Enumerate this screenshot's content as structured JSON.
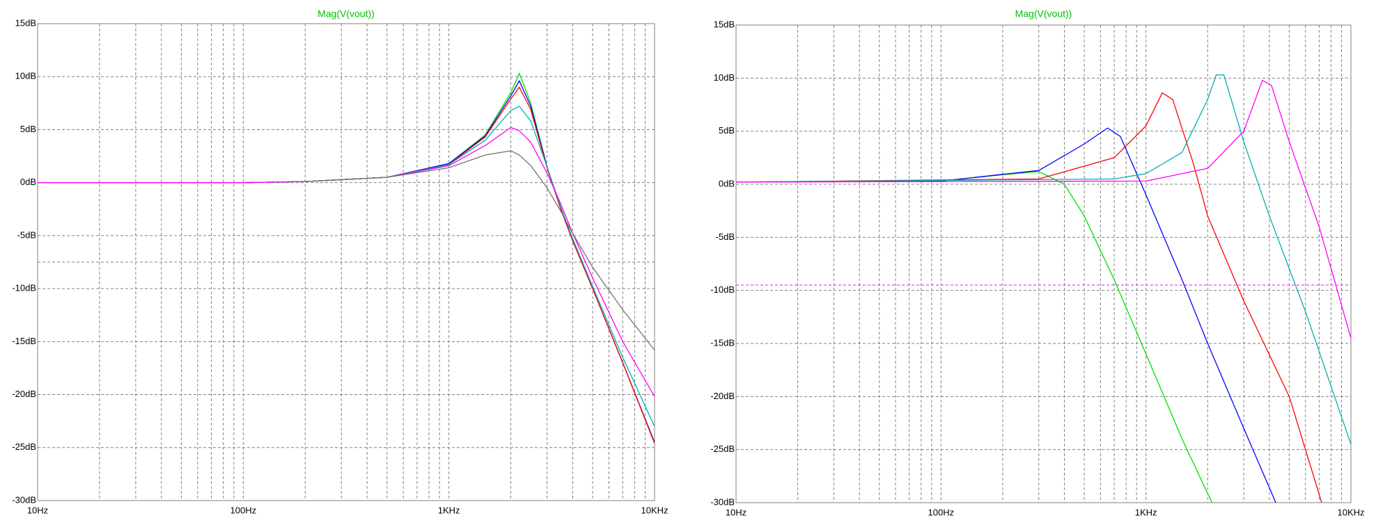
{
  "chart_data": [
    {
      "type": "line",
      "title": "Mag(V(vout))",
      "xscale": "log",
      "grid": true,
      "xlim": [
        10,
        10000
      ],
      "ylim": [
        -30,
        15
      ],
      "xticks": [
        {
          "value": 10,
          "label": "10Hz"
        },
        {
          "value": 100,
          "label": "100Hz"
        },
        {
          "value": 1000,
          "label": "1KHz"
        },
        {
          "value": 10000,
          "label": "10KHz"
        }
      ],
      "xminor": [
        20,
        30,
        40,
        50,
        60,
        70,
        80,
        90,
        200,
        300,
        400,
        500,
        600,
        700,
        800,
        900,
        2000,
        3000,
        4000,
        5000,
        6000,
        7000,
        8000,
        9000
      ],
      "yticks": [
        {
          "value": 15,
          "label": "15dB"
        },
        {
          "value": 10,
          "label": "10dB"
        },
        {
          "value": 5,
          "label": "5dB"
        },
        {
          "value": 0,
          "label": "0dB"
        },
        {
          "value": -5,
          "label": "-5dB"
        },
        {
          "value": -10,
          "label": "-10dB"
        },
        {
          "value": -15,
          "label": "-15dB"
        },
        {
          "value": -20,
          "label": "-20dB"
        },
        {
          "value": -25,
          "label": "-25dB"
        },
        {
          "value": -30,
          "label": "-30dB"
        }
      ],
      "reference_lines": [
        {
          "value": -7.5,
          "color": "#808080"
        }
      ],
      "x": [
        10,
        100,
        200,
        500,
        1000,
        1500,
        2000,
        2200,
        2500,
        3000,
        3500,
        4000,
        5000,
        7000,
        10000
      ],
      "series": [
        {
          "color": "#00e000",
          "values": [
            0,
            0,
            0.1,
            0.5,
            1.8,
            4.5,
            8.5,
            10.3,
            7.5,
            1.5,
            -2.5,
            -5.5,
            -10,
            -17,
            -24.6
          ]
        },
        {
          "color": "#0000ff",
          "values": [
            0,
            0,
            0.1,
            0.5,
            1.8,
            4.4,
            8.2,
            9.6,
            7.2,
            1.5,
            -2.5,
            -5.5,
            -10,
            -17,
            -24.5
          ]
        },
        {
          "color": "#ff0000",
          "values": [
            0,
            0,
            0.1,
            0.5,
            1.7,
            4.3,
            7.9,
            9.0,
            6.9,
            1.4,
            -2.5,
            -5.5,
            -10,
            -17,
            -24.6
          ]
        },
        {
          "color": "#00b0b0",
          "values": [
            0,
            0,
            0.1,
            0.5,
            1.7,
            4.0,
            6.8,
            7.2,
            5.8,
            1.5,
            -2.3,
            -5.3,
            -9.8,
            -16.5,
            -23
          ]
        },
        {
          "color": "#ff00ff",
          "values": [
            0,
            0,
            0.1,
            0.5,
            1.6,
            3.5,
            5.2,
            4.9,
            3.8,
            0.9,
            -2,
            -4.8,
            -9,
            -15,
            -20.2
          ]
        },
        {
          "color": "#707070",
          "values": [
            null,
            null,
            0.1,
            0.5,
            1.4,
            2.6,
            3.0,
            2.6,
            1.6,
            -0.5,
            -2.7,
            -4.8,
            -8,
            -12,
            -15.8
          ]
        }
      ]
    },
    {
      "type": "line",
      "title": "Mag(V(vout))",
      "xscale": "log",
      "grid": true,
      "xlim": [
        10,
        10000
      ],
      "ylim": [
        -30,
        15
      ],
      "xticks": [
        {
          "value": 10,
          "label": "10Hz"
        },
        {
          "value": 100,
          "label": "100Hz"
        },
        {
          "value": 1000,
          "label": "1KHz"
        },
        {
          "value": 10000,
          "label": "10KHz"
        }
      ],
      "xminor": [
        20,
        30,
        40,
        50,
        60,
        70,
        80,
        90,
        200,
        300,
        400,
        500,
        600,
        700,
        800,
        900,
        2000,
        3000,
        4000,
        5000,
        6000,
        7000,
        8000,
        9000
      ],
      "yticks": [
        {
          "value": 15,
          "label": "15dB"
        },
        {
          "value": 10,
          "label": "10dB"
        },
        {
          "value": 5,
          "label": "5dB"
        },
        {
          "value": 0,
          "label": "0dB"
        },
        {
          "value": -5,
          "label": "-5dB"
        },
        {
          "value": -10,
          "label": "-10dB"
        },
        {
          "value": -15,
          "label": "-15dB"
        },
        {
          "value": -20,
          "label": "-20dB"
        },
        {
          "value": -25,
          "label": "-25dB"
        },
        {
          "value": -30,
          "label": "-30dB"
        }
      ],
      "reference_lines": [
        {
          "value": -9.5,
          "color": "#ff00ff"
        }
      ],
      "series": [
        {
          "color": "#00e000",
          "x": [
            10,
            100,
            200,
            300,
            400,
            500,
            700,
            1000,
            1500,
            2100
          ],
          "values": [
            0.2,
            0.3,
            0.9,
            1.2,
            0,
            -3,
            -9,
            -16,
            -24,
            -30
          ]
        },
        {
          "color": "#0000ff",
          "x": [
            10,
            100,
            300,
            500,
            650,
            750,
            1000,
            1500,
            2000,
            3000,
            4300
          ],
          "values": [
            0.2,
            0.3,
            1.3,
            3.8,
            5.3,
            4.5,
            -1,
            -9,
            -15,
            -23,
            -30
          ]
        },
        {
          "color": "#ff0000",
          "x": [
            10,
            300,
            700,
            1000,
            1200,
            1350,
            1700,
            2000,
            3000,
            5000,
            7200
          ],
          "values": [
            0.2,
            0.5,
            2.5,
            5.5,
            8.6,
            8,
            2,
            -3,
            -11,
            -20,
            -30
          ]
        },
        {
          "color": "#00b0b0",
          "x": [
            10,
            700,
            1000,
            1500,
            2000,
            2200,
            2400,
            3000,
            4000,
            6000,
            10000
          ],
          "values": [
            0.2,
            0.5,
            1,
            3,
            8,
            10.3,
            10.3,
            4,
            -3,
            -12,
            -24.5
          ]
        },
        {
          "color": "#ff00ff",
          "x": [
            10,
            1000,
            2000,
            3000,
            3700,
            4100,
            5000,
            7000,
            10000
          ],
          "values": [
            0.2,
            0.3,
            1.5,
            5,
            9.8,
            9.3,
            4,
            -4,
            -14.5
          ]
        }
      ]
    }
  ]
}
